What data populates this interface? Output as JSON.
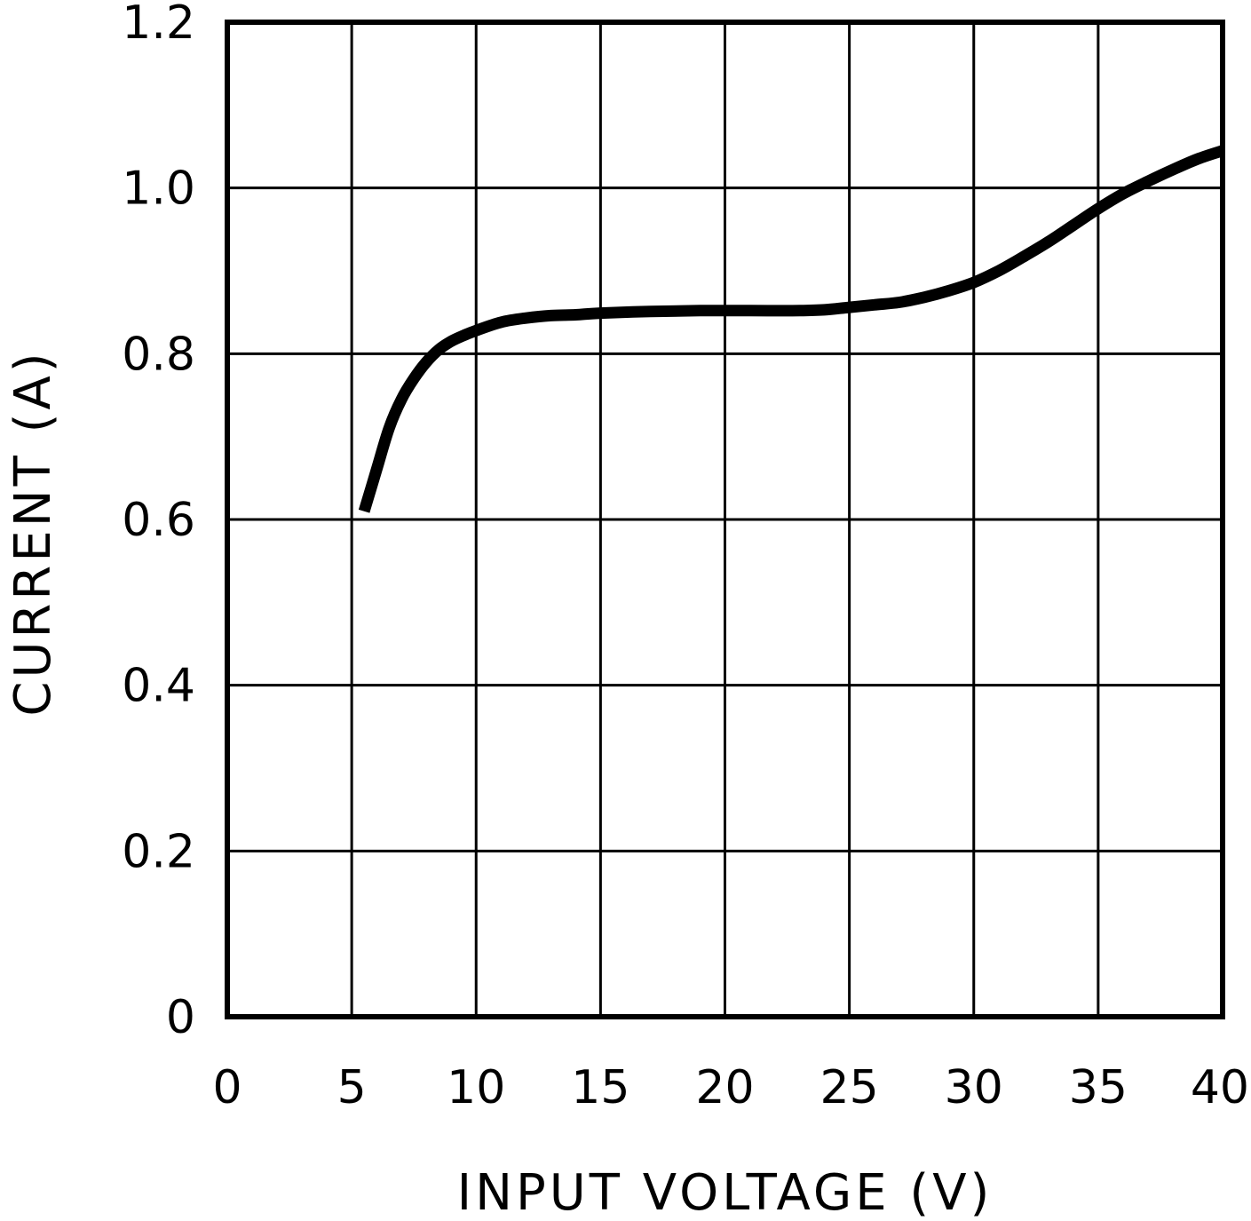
{
  "chart_data": {
    "type": "line",
    "title": "",
    "xlabel": "INPUT VOLTAGE (V)",
    "ylabel": "CURRENT (A)",
    "xlim": [
      0,
      40
    ],
    "ylim": [
      0,
      1.2
    ],
    "x_ticks": [
      0,
      5,
      10,
      15,
      20,
      25,
      30,
      35,
      40
    ],
    "x_tick_labels": [
      "0",
      "5",
      "10",
      "15",
      "20",
      "25",
      "30",
      "35",
      "40"
    ],
    "y_ticks": [
      0,
      0.2,
      0.4,
      0.6,
      0.8,
      1.0,
      1.2
    ],
    "y_tick_labels": [
      "0",
      "0.2",
      "0.4",
      "0.6",
      "0.8",
      "1.0",
      "1.2"
    ],
    "grid": true,
    "legend": "none",
    "colors": {
      "line": "#000000",
      "grid": "#000000",
      "background": "#ffffff"
    },
    "series": [
      {
        "x": [
          5.5,
          6,
          6.5,
          7,
          7.5,
          8,
          8.5,
          9,
          9.5,
          10,
          11,
          12,
          13,
          14,
          15,
          17,
          19,
          21,
          23,
          24,
          25,
          26,
          27,
          28,
          29,
          30,
          31,
          32,
          33,
          34,
          35,
          36,
          37,
          38,
          39,
          40
        ],
        "y": [
          0.61,
          0.66,
          0.71,
          0.745,
          0.77,
          0.79,
          0.805,
          0.815,
          0.822,
          0.828,
          0.838,
          0.843,
          0.846,
          0.847,
          0.849,
          0.851,
          0.852,
          0.852,
          0.852,
          0.853,
          0.856,
          0.859,
          0.862,
          0.868,
          0.876,
          0.886,
          0.9,
          0.917,
          0.935,
          0.955,
          0.975,
          0.993,
          1.008,
          1.022,
          1.035,
          1.045
        ]
      }
    ]
  }
}
